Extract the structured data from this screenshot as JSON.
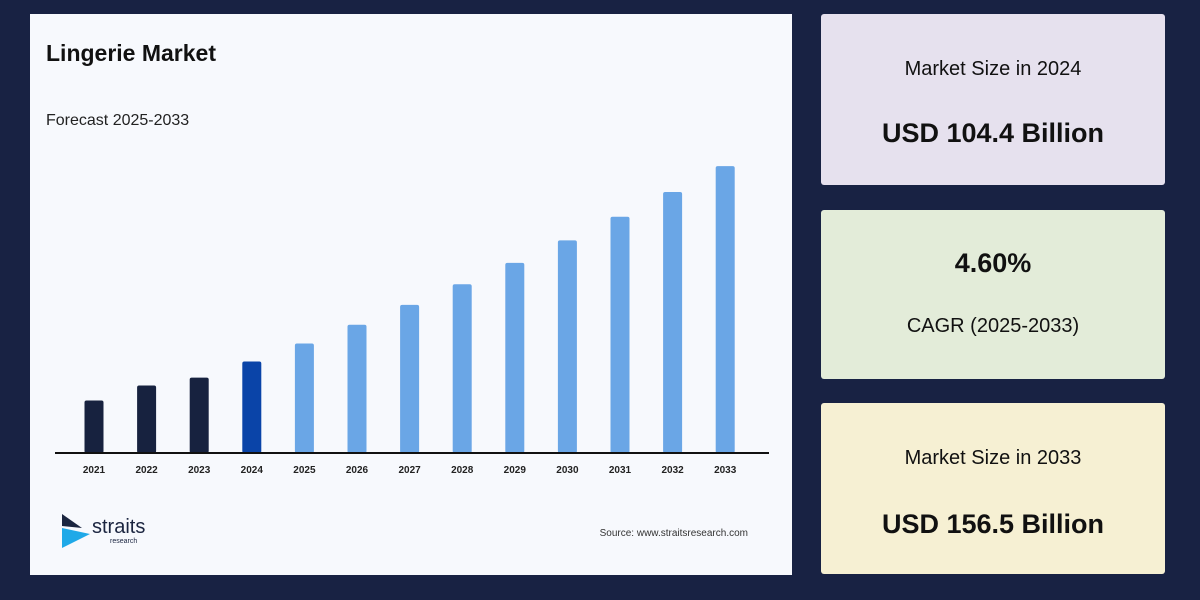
{
  "chart_data": {
    "type": "bar",
    "title": "Lingerie Market",
    "subtitle": "Forecast 2025-2033",
    "categories": [
      "2021",
      "2022",
      "2023",
      "2024",
      "2025",
      "2026",
      "2027",
      "2028",
      "2029",
      "2030",
      "2031",
      "2032",
      "2033"
    ],
    "values": [
      94.0,
      98.0,
      100.1,
      104.4,
      109.2,
      114.2,
      119.5,
      125.0,
      130.7,
      136.7,
      143.0,
      149.6,
      156.5
    ],
    "ylim": [
      80,
      160
    ],
    "grid": false,
    "colors": {
      "historical": "#17223f",
      "base_year": "#0a44a8",
      "forecast": "#6aa6e6"
    },
    "xlabel": "",
    "ylabel": ""
  },
  "source": "Source: www.straitsresearch.com",
  "logo": {
    "name": "straits",
    "sub": "research"
  },
  "stats": [
    {
      "label": "Market Size in 2024",
      "value": "USD 104.4 Billion",
      "bg": "#e6e1ee"
    },
    {
      "value": "4.60%",
      "label": "CAGR (2025-2033)",
      "bg": "#e3ecd9"
    },
    {
      "label": "Market Size in 2033",
      "value": "USD 156.5 Billion",
      "bg": "#f6f0d3"
    }
  ]
}
